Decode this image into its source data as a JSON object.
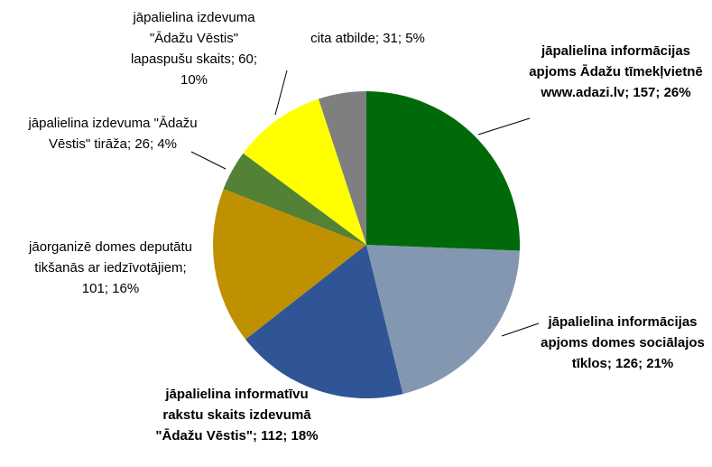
{
  "chart_data": {
    "type": "pie",
    "values": [
      157,
      126,
      112,
      101,
      26,
      60,
      31
    ],
    "value_labels": [
      "jāpalielina informācijas apjoms Ādažu tīmekļvietnē www.adazi.lv; 157; 26%",
      "jāpalielina informācijas apjoms domes sociālajos tīklos; 126; 21%",
      "jāpalielina informatīvu rakstu skaits izdevumā \"Ādažu Vēstis\"; 112; 18%",
      "jāorganizē domes deputātu tikšanās ar iedzīvotājiem; 101; 16%",
      "jāpalielina izdevuma \"Ādažu Vēstis\" tirāža; 26; 4%",
      "jāpalielina izdevuma \"Ādažu Vēstis\" lapaspušu skaits; 60; 10%",
      "cita atbilde; 31; 5%"
    ],
    "colors": [
      "#006a0a",
      "#8497b0",
      "#2f5597",
      "#bf9000",
      "#538135",
      "#ffff00",
      "#7f7f7f"
    ]
  }
}
